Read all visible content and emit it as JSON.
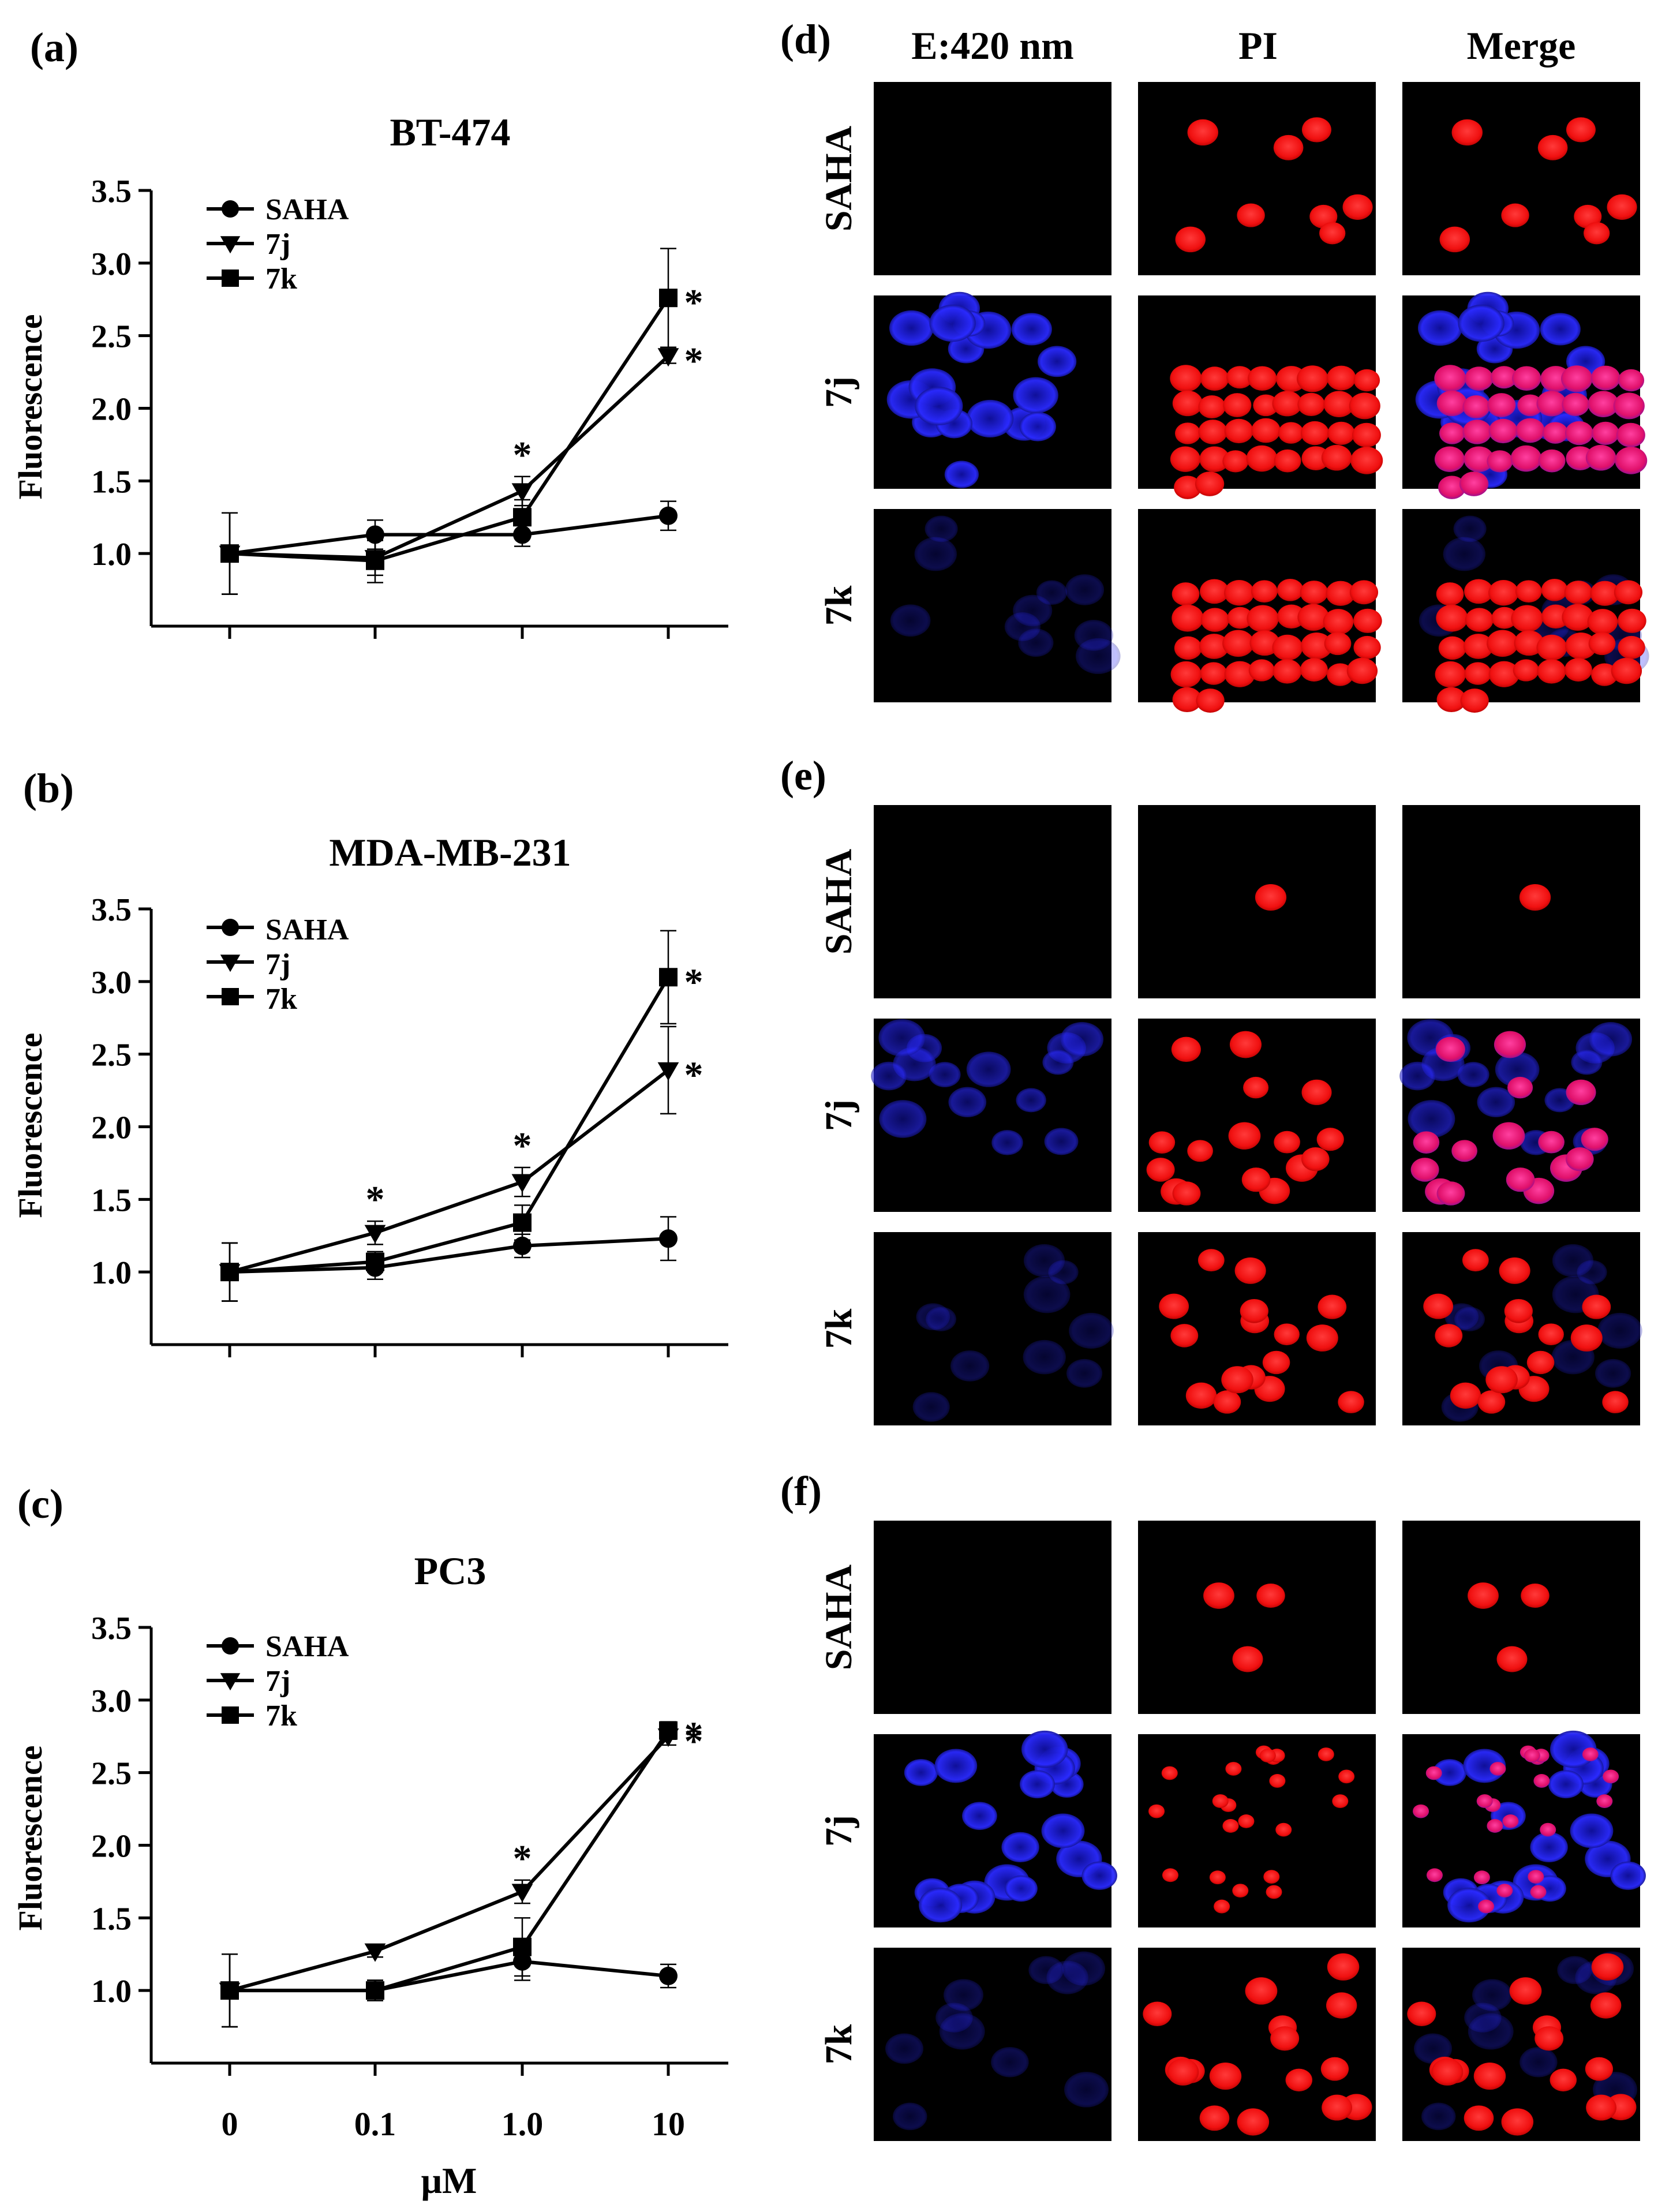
{
  "x_axis": {
    "ticks": [
      "0",
      "0.1",
      "1.0",
      "10"
    ],
    "label": "μM"
  },
  "y_axis": {
    "label": "Fluorescence",
    "ticks": [
      "1.0",
      "1.5",
      "2.0",
      "2.5",
      "3.0",
      "3.5"
    ]
  },
  "legend": {
    "entries": [
      "SAHA",
      "7j",
      "7k"
    ],
    "placement": "top-left"
  },
  "significance_marker": "*",
  "chart_data": [
    {
      "panel": "(a)",
      "title": "BT-474",
      "type": "line",
      "categories": [
        "0",
        "0.1",
        "1.0",
        "10"
      ],
      "ylim": [
        0.5,
        3.5
      ],
      "series": [
        {
          "name": "SAHA",
          "marker": "circle",
          "values": [
            1.0,
            1.13,
            1.13,
            1.26
          ],
          "errors": [
            0.28,
            0.1,
            0.08,
            0.1
          ]
        },
        {
          "name": "7j",
          "marker": "triangle-down",
          "values": [
            1.0,
            0.97,
            1.43,
            2.36
          ],
          "errors": [
            0.28,
            0.12,
            0.1,
            0.05
          ]
        },
        {
          "name": "7k",
          "marker": "square",
          "values": [
            1.0,
            0.95,
            1.25,
            2.76
          ],
          "errors": [
            0.28,
            0.15,
            0.12,
            0.34
          ]
        }
      ],
      "significance": [
        {
          "series": "7j",
          "index": 2
        },
        {
          "series": "7k",
          "index": 3
        },
        {
          "series": "7j",
          "index": 3
        }
      ]
    },
    {
      "panel": "(b)",
      "title": "MDA-MB-231",
      "type": "line",
      "categories": [
        "0",
        "0.1",
        "1.0",
        "10"
      ],
      "ylim": [
        0.5,
        3.5
      ],
      "series": [
        {
          "name": "SAHA",
          "marker": "circle",
          "values": [
            1.0,
            1.03,
            1.18,
            1.23
          ],
          "errors": [
            0.2,
            0.08,
            0.08,
            0.15
          ]
        },
        {
          "name": "7j",
          "marker": "triangle-down",
          "values": [
            1.0,
            1.27,
            1.62,
            2.39
          ],
          "errors": [
            0.2,
            0.08,
            0.1,
            0.3
          ]
        },
        {
          "name": "7k",
          "marker": "square",
          "values": [
            1.0,
            1.07,
            1.34,
            3.03
          ],
          "errors": [
            0.2,
            0.07,
            0.12,
            0.32
          ]
        }
      ],
      "significance": [
        {
          "series": "7j",
          "index": 1
        },
        {
          "series": "7j",
          "index": 2
        },
        {
          "series": "7k",
          "index": 3
        },
        {
          "series": "7j",
          "index": 3
        }
      ]
    },
    {
      "panel": "(c)",
      "title": "PC3",
      "type": "line",
      "categories": [
        "0",
        "0.1",
        "1.0",
        "10"
      ],
      "ylim": [
        0.5,
        3.5
      ],
      "series": [
        {
          "name": "SAHA",
          "marker": "circle",
          "values": [
            1.0,
            1.0,
            1.2,
            1.1
          ],
          "errors": [
            0.25,
            0.07,
            0.13,
            0.08
          ]
        },
        {
          "name": "7j",
          "marker": "triangle-down",
          "values": [
            1.0,
            1.27,
            1.68,
            2.75
          ],
          "errors": [
            0.25,
            0.04,
            0.08,
            0.06
          ]
        },
        {
          "name": "7k",
          "marker": "square",
          "values": [
            1.0,
            1.0,
            1.3,
            2.79
          ],
          "errors": [
            0.25,
            0.07,
            0.2,
            0.06
          ]
        }
      ],
      "significance": [
        {
          "series": "7j",
          "index": 2
        },
        {
          "series": "7k",
          "index": 3
        },
        {
          "series": "7j",
          "index": 3
        }
      ]
    }
  ],
  "micrographs": {
    "column_headers": [
      "E:420 nm",
      "PI",
      "Merge"
    ],
    "row_labels": [
      "SAHA",
      "7j",
      "7k"
    ],
    "panels": [
      {
        "label": "(d)",
        "cells": [
          [
            "none",
            "sparse",
            "sparse"
          ],
          [
            "blue-strong",
            "dense",
            "dense"
          ],
          [
            "blue-faint",
            "dense",
            "dense"
          ]
        ]
      },
      {
        "label": "(e)",
        "cells": [
          [
            "none",
            "single",
            "single"
          ],
          [
            "blue-medium",
            "medium",
            "medium"
          ],
          [
            "blue-faint",
            "medium",
            "medium"
          ]
        ]
      },
      {
        "label": "(f)",
        "cells": [
          [
            "none",
            "pair",
            "pair"
          ],
          [
            "blue-strong",
            "small",
            "small"
          ],
          [
            "blue-faint",
            "medium",
            "medium"
          ]
        ]
      }
    ]
  },
  "colors": {
    "line": "#000000",
    "image_bg": "#000000",
    "blue_stain": "#2a2aff",
    "red_stain": "#ff1a1a"
  }
}
